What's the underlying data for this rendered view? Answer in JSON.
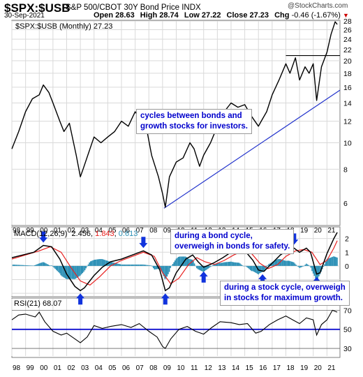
{
  "header": {
    "symbol": "$SPX:$USB",
    "description": "S&P 500/CBOT 30Y Bond Price INDX",
    "date": "30-Sep-2021",
    "open": "Open 28.63",
    "high": "High 28.74",
    "low": "Low 27.22",
    "close": "Close 27.23",
    "chg_label": "Chg",
    "chg_value": "-0.46 (-1.67%)",
    "chg_marker": "▼",
    "watermark": "@StockCharts.com"
  },
  "colors": {
    "price_line": "#000000",
    "trendline": "#2233cc",
    "macd_line": "#000000",
    "signal_line": "#e8201f",
    "histogram": "#2a8fb5",
    "arrow": "#1133dd",
    "annotation_text": "#0000cc",
    "rsi_line": "#000000",
    "rsi_level": "#0000cc",
    "chg_negative": "#cc0000"
  },
  "annotations": {
    "main": "cycles between bonds and\ngrowth stocks for investors.",
    "bond_cycle": "during a bond cycle,\noverweigh in bonds for safety.",
    "stock_cycle": "during a stock cycle, overweigh\nin stocks for maximum growth."
  },
  "chart_data": [
    {
      "type": "line",
      "panel": "price",
      "legend": "$SPX:$USB (Monthly) 27.23",
      "x_ticks": [
        "98",
        "99",
        "00",
        "01",
        "02",
        "03",
        "04",
        "05",
        "06",
        "07",
        "08",
        "09",
        "10",
        "11",
        "12",
        "13",
        "14",
        "15",
        "16",
        "17",
        "18",
        "19",
        "20",
        "21"
      ],
      "ylim": [
        5,
        28
      ],
      "y_ticks": [
        6,
        8,
        10,
        12,
        14,
        16,
        18,
        20,
        22,
        24,
        26,
        28
      ],
      "scale": "log",
      "series": [
        {
          "x": [
            1998.0,
            1998.5,
            1999.0,
            1999.5,
            2000.0,
            2000.3,
            2000.7,
            2001.0,
            2001.5,
            2001.8,
            2002.2,
            2002.7,
            2003.0,
            2003.2,
            2003.7,
            2004.0,
            2004.5,
            2005.0,
            2005.5,
            2006.0,
            2006.5,
            2007.0,
            2007.5,
            2007.8,
            2008.2,
            2008.7,
            2009.0,
            2009.2,
            2009.5,
            2010.0,
            2010.5,
            2011.0,
            2011.3,
            2011.7,
            2012.0,
            2012.5,
            2013.0,
            2013.5,
            2014.0,
            2014.5,
            2015.0,
            2015.5,
            2016.0,
            2016.2,
            2016.6,
            2017.0,
            2017.5,
            2018.0,
            2018.3,
            2018.7,
            2019.0,
            2019.4,
            2019.7,
            2020.0,
            2020.25,
            2020.6,
            2021.0,
            2021.3,
            2021.6,
            2021.75
          ],
          "y": [
            9.5,
            11.0,
            13.0,
            14.5,
            15.0,
            16.3,
            15.3,
            14.0,
            12.0,
            11.0,
            11.8,
            9.0,
            7.5,
            8.0,
            9.5,
            10.5,
            10.0,
            10.5,
            11.0,
            12.0,
            11.5,
            13.0,
            12.0,
            11.5,
            9.0,
            7.5,
            6.5,
            5.8,
            7.5,
            8.5,
            8.8,
            10.0,
            9.5,
            8.2,
            9.0,
            10.0,
            11.5,
            13.0,
            14.0,
            13.5,
            13.8,
            12.5,
            11.5,
            12.0,
            13.0,
            15.0,
            17.0,
            19.5,
            18.0,
            20.5,
            17.0,
            19.0,
            18.0,
            19.5,
            14.3,
            19.0,
            21.5,
            25.0,
            27.8,
            27.2
          ]
        }
      ]
    },
    {
      "type": "line",
      "panel": "macd",
      "legend_label": "MACD(12,26,9)",
      "legend_values": [
        "2.456",
        "1.843",
        "0.613"
      ],
      "ylim": [
        -2.2,
        2.8
      ],
      "y_ticks": [
        -2,
        -1,
        0,
        1,
        2
      ],
      "series": [
        {
          "name": "MACD",
          "x": [
            1998.0,
            1998.8,
            1999.6,
            2000.3,
            2000.9,
            2001.5,
            2002.0,
            2002.6,
            2003.0,
            2003.3,
            2004.0,
            2004.6,
            2005.2,
            2006.0,
            2006.8,
            2007.6,
            2008.2,
            2008.8,
            2009.2,
            2009.5,
            2010.0,
            2010.7,
            2011.2,
            2011.6,
            2012.0,
            2012.7,
            2013.4,
            2014.0,
            2014.6,
            2015.1,
            2015.6,
            2016.0,
            2016.4,
            2017.0,
            2017.6,
            2018.2,
            2018.6,
            2019.0,
            2019.5,
            2019.8,
            2020.25,
            2020.5,
            2021.0,
            2021.5,
            2021.75
          ],
          "y": [
            0.6,
            0.8,
            1.0,
            1.5,
            1.4,
            0.5,
            -0.6,
            -1.5,
            -1.8,
            -1.6,
            -0.7,
            -0.1,
            0.3,
            0.5,
            0.8,
            1.1,
            0.8,
            -0.3,
            -1.8,
            -1.6,
            -0.5,
            0.5,
            0.8,
            0.3,
            -0.1,
            0.2,
            0.6,
            1.0,
            1.2,
            1.0,
            0.4,
            -0.3,
            -0.4,
            0.2,
            0.8,
            1.2,
            1.3,
            1.0,
            1.3,
            1.0,
            -0.6,
            -0.5,
            0.9,
            2.0,
            2.45
          ]
        },
        {
          "name": "Signal",
          "x": [
            1998.0,
            1999.0,
            2000.0,
            2000.8,
            2001.6,
            2002.3,
            2003.0,
            2003.7,
            2004.4,
            2005.2,
            2006.0,
            2006.8,
            2007.6,
            2008.4,
            2009.0,
            2009.6,
            2010.2,
            2010.9,
            2011.5,
            2012.1,
            2012.8,
            2013.5,
            2014.2,
            2014.9,
            2015.5,
            2016.1,
            2016.7,
            2017.4,
            2018.0,
            2018.7,
            2019.3,
            2019.9,
            2020.5,
            2021.0,
            2021.5,
            2021.75
          ],
          "y": [
            0.5,
            0.8,
            1.1,
            1.4,
            1.0,
            -0.1,
            -1.1,
            -1.4,
            -0.8,
            0.0,
            0.4,
            0.7,
            1.0,
            0.7,
            -0.5,
            -1.3,
            -0.9,
            0.1,
            0.6,
            0.3,
            0.1,
            0.4,
            0.8,
            1.1,
            0.9,
            0.2,
            -0.2,
            0.1,
            0.7,
            1.1,
            1.2,
            1.0,
            0.1,
            0.4,
            1.3,
            1.84
          ]
        }
      ]
    },
    {
      "type": "line",
      "panel": "rsi",
      "legend": "RSI(21) 68.07",
      "ylim": [
        22,
        82
      ],
      "y_ticks": [
        30,
        50,
        70
      ],
      "levels": [
        30,
        50,
        70
      ],
      "series": [
        {
          "x": [
            1998.0,
            1998.5,
            1999.0,
            1999.7,
            2000.0,
            2000.4,
            2001.0,
            2001.6,
            2002.0,
            2002.6,
            2003.0,
            2003.5,
            2004.0,
            2004.6,
            2005.2,
            2006.0,
            2006.7,
            2007.3,
            2008.0,
            2008.6,
            2009.0,
            2009.2,
            2009.6,
            2010.2,
            2010.8,
            2011.4,
            2012.0,
            2012.6,
            2013.2,
            2014.0,
            2014.6,
            2015.2,
            2015.8,
            2016.2,
            2016.8,
            2017.4,
            2018.0,
            2018.5,
            2019.0,
            2019.5,
            2020.0,
            2020.25,
            2020.6,
            2021.0,
            2021.4,
            2021.75
          ],
          "y": [
            60,
            65,
            66,
            63,
            68,
            58,
            48,
            44,
            46,
            40,
            36,
            42,
            54,
            51,
            53,
            55,
            52,
            56,
            48,
            42,
            32,
            30,
            40,
            50,
            53,
            48,
            45,
            52,
            58,
            57,
            55,
            56,
            46,
            48,
            55,
            60,
            64,
            60,
            56,
            62,
            60,
            44,
            55,
            60,
            70,
            68
          ]
        }
      ]
    }
  ]
}
